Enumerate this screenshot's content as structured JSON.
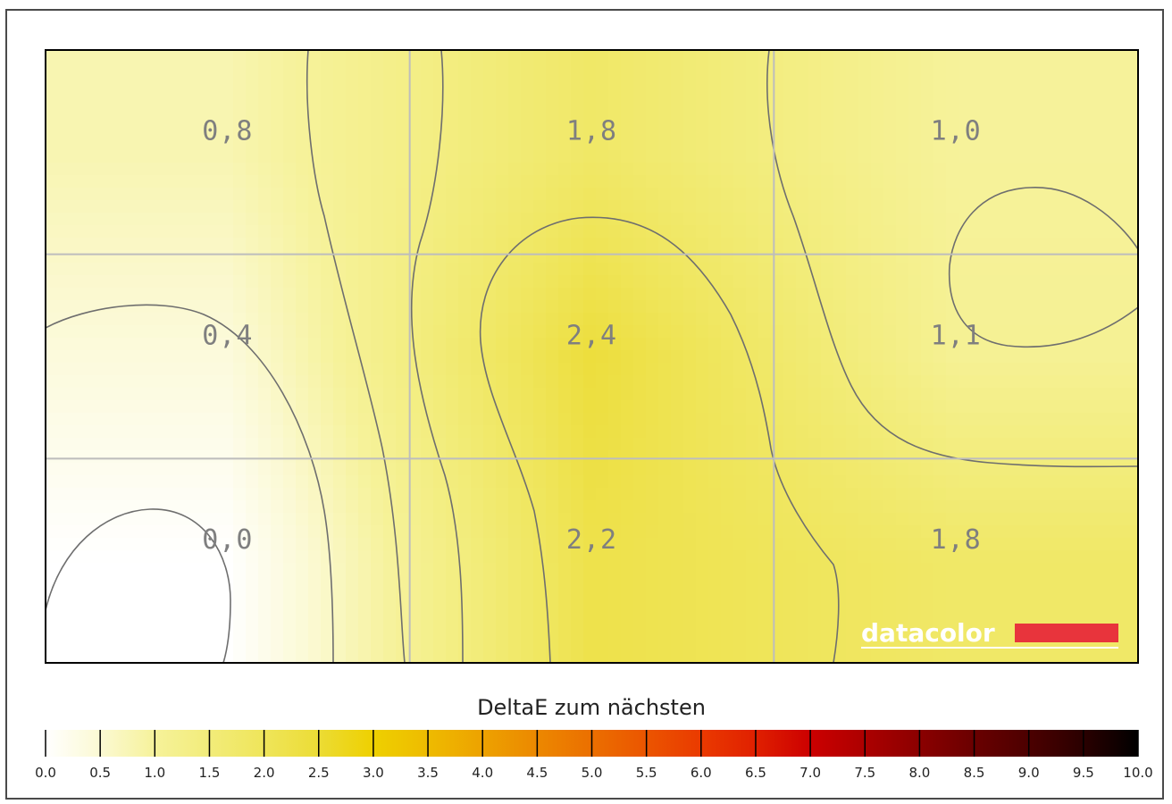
{
  "chart_data": {
    "type": "heatmap",
    "title": "",
    "grid_rows": 3,
    "grid_cols": 3,
    "cells": [
      [
        0.8,
        1.8,
        1.0
      ],
      [
        0.4,
        2.4,
        1.1
      ],
      [
        0.0,
        2.2,
        1.8
      ]
    ],
    "cell_labels": [
      [
        "0,8",
        "1,8",
        "1,0"
      ],
      [
        "0,4",
        "2,4",
        "1,1"
      ],
      [
        "0,0",
        "2,2",
        "1,8"
      ]
    ],
    "grid": true,
    "contours": true,
    "colorbar": {
      "title": "DeltaE zum nächsten",
      "min": 0.0,
      "max": 10.0,
      "step": 0.5,
      "tick_labels": [
        "0.0",
        "0.5",
        "1.0",
        "1.5",
        "2.0",
        "2.5",
        "3.0",
        "3.5",
        "4.0",
        "4.5",
        "5.0",
        "5.5",
        "6.0",
        "6.5",
        "7.0",
        "7.5",
        "8.0",
        "8.5",
        "9.0",
        "9.5",
        "10.0"
      ],
      "colors": [
        "#ffffff",
        "#fbf9d3",
        "#f6f29a",
        "#f2ec7a",
        "#efe55a",
        "#ecdc35",
        "#eed000",
        "#eebb00",
        "#eda200",
        "#ec8800",
        "#eb6f00",
        "#eb5500",
        "#ea3a00",
        "#e02000",
        "#cc0000",
        "#ac0000",
        "#8b0000",
        "#6a0000",
        "#4c0000",
        "#2a0000",
        "#000000"
      ]
    },
    "brand": {
      "logo_text": "datacolor",
      "accent_color": "#e8343c"
    }
  }
}
